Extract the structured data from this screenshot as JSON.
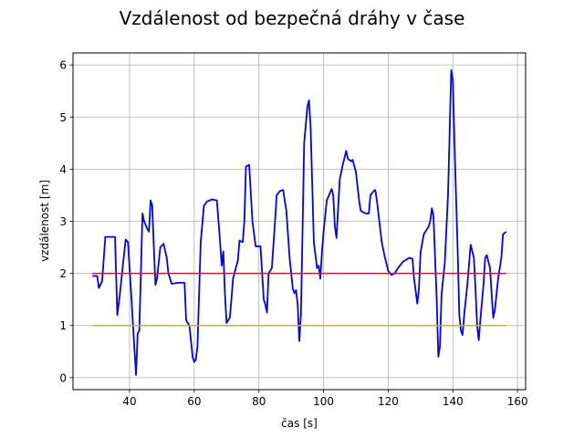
{
  "chart_data": {
    "type": "line",
    "title": "Vzdálenost od bezpečná dráhy v čase",
    "xlabel": "čas [s]",
    "ylabel": "vzdálenost [m]",
    "xlim": [
      22.5,
      162.5
    ],
    "ylim": [
      -0.23,
      6.23
    ],
    "xticks": [
      40,
      60,
      80,
      100,
      120,
      140,
      160
    ],
    "yticks": [
      0,
      1,
      2,
      3,
      4,
      5,
      6
    ],
    "grid": true,
    "series": [
      {
        "color": "#0000ff",
        "points": [
          [
            28.5,
            1.95
          ],
          [
            30.0,
            1.95
          ],
          [
            30.5,
            1.72
          ],
          [
            31.5,
            1.85
          ],
          [
            32.5,
            2.7
          ],
          [
            34.0,
            2.7
          ],
          [
            35.5,
            2.7
          ],
          [
            36.2,
            1.2
          ],
          [
            37.0,
            1.6
          ],
          [
            38.0,
            2.2
          ],
          [
            38.8,
            2.65
          ],
          [
            39.5,
            2.6
          ],
          [
            40.5,
            1.6
          ],
          [
            41.5,
            0.55
          ],
          [
            42.0,
            0.05
          ],
          [
            42.5,
            0.85
          ],
          [
            43.0,
            0.9
          ],
          [
            43.5,
            2.0
          ],
          [
            44.0,
            3.15
          ],
          [
            44.5,
            3.0
          ],
          [
            45.5,
            2.85
          ],
          [
            46.0,
            2.8
          ],
          [
            46.5,
            3.4
          ],
          [
            47.0,
            3.3
          ],
          [
            47.5,
            2.5
          ],
          [
            48.0,
            1.78
          ],
          [
            48.5,
            1.9
          ],
          [
            49.5,
            2.5
          ],
          [
            50.5,
            2.57
          ],
          [
            51.5,
            2.3
          ],
          [
            52.0,
            2.0
          ],
          [
            53.0,
            1.8
          ],
          [
            55.0,
            1.82
          ],
          [
            57.0,
            1.82
          ],
          [
            57.5,
            1.1
          ],
          [
            58.5,
            1.0
          ],
          [
            59.5,
            0.4
          ],
          [
            60.0,
            0.3
          ],
          [
            60.5,
            0.35
          ],
          [
            61.0,
            0.6
          ],
          [
            62.0,
            2.6
          ],
          [
            63.0,
            3.3
          ],
          [
            64.0,
            3.38
          ],
          [
            65.5,
            3.42
          ],
          [
            67.0,
            3.4
          ],
          [
            68.0,
            2.6
          ],
          [
            68.5,
            2.15
          ],
          [
            69.0,
            2.42
          ],
          [
            69.5,
            1.6
          ],
          [
            70.0,
            1.05
          ],
          [
            71.0,
            1.15
          ],
          [
            71.5,
            1.5
          ],
          [
            72.0,
            1.9
          ],
          [
            73.5,
            2.25
          ],
          [
            74.0,
            2.63
          ],
          [
            75.0,
            2.6
          ],
          [
            75.5,
            3.0
          ],
          [
            76.0,
            4.05
          ],
          [
            77.0,
            4.08
          ],
          [
            78.0,
            3.0
          ],
          [
            79.0,
            2.52
          ],
          [
            80.5,
            2.52
          ],
          [
            81.5,
            1.5
          ],
          [
            82.0,
            1.4
          ],
          [
            82.5,
            1.25
          ],
          [
            83.0,
            2.0
          ],
          [
            84.0,
            2.1
          ],
          [
            85.0,
            3.0
          ],
          [
            85.5,
            3.5
          ],
          [
            86.5,
            3.58
          ],
          [
            87.5,
            3.6
          ],
          [
            88.5,
            3.2
          ],
          [
            89.5,
            2.3
          ],
          [
            90.5,
            1.7
          ],
          [
            91.0,
            1.62
          ],
          [
            91.5,
            1.68
          ],
          [
            92.0,
            1.4
          ],
          [
            92.5,
            0.7
          ],
          [
            93.0,
            1.2
          ],
          [
            93.5,
            2.8
          ],
          [
            94.0,
            4.5
          ],
          [
            95.0,
            5.2
          ],
          [
            95.5,
            5.32
          ],
          [
            96.0,
            4.8
          ],
          [
            97.0,
            2.6
          ],
          [
            98.0,
            2.1
          ],
          [
            98.5,
            2.15
          ],
          [
            99.0,
            1.9
          ],
          [
            99.5,
            2.4
          ],
          [
            100.0,
            2.8
          ],
          [
            101.0,
            3.4
          ],
          [
            102.5,
            3.62
          ],
          [
            103.0,
            3.5
          ],
          [
            103.5,
            2.9
          ],
          [
            104.0,
            2.68
          ],
          [
            105.0,
            3.8
          ],
          [
            106.0,
            4.1
          ],
          [
            107.0,
            4.35
          ],
          [
            107.5,
            4.2
          ],
          [
            108.5,
            4.15
          ],
          [
            109.0,
            4.18
          ],
          [
            110.0,
            3.95
          ],
          [
            111.0,
            3.4
          ],
          [
            111.5,
            3.2
          ],
          [
            113.0,
            3.15
          ],
          [
            114.0,
            3.15
          ],
          [
            114.5,
            3.5
          ],
          [
            115.5,
            3.58
          ],
          [
            116.0,
            3.6
          ],
          [
            116.5,
            3.4
          ],
          [
            118.0,
            2.6
          ],
          [
            119.0,
            2.3
          ],
          [
            120.0,
            2.05
          ],
          [
            121.0,
            1.97
          ],
          [
            122.0,
            2.0
          ],
          [
            123.0,
            2.1
          ],
          [
            124.5,
            2.22
          ],
          [
            126.5,
            2.3
          ],
          [
            127.5,
            2.28
          ],
          [
            128.0,
            1.9
          ],
          [
            129.0,
            1.42
          ],
          [
            129.5,
            1.7
          ],
          [
            130.0,
            2.4
          ],
          [
            131.0,
            2.75
          ],
          [
            132.5,
            2.9
          ],
          [
            133.0,
            3.0
          ],
          [
            133.5,
            3.25
          ],
          [
            134.0,
            3.1
          ],
          [
            134.5,
            2.3
          ],
          [
            135.0,
            1.5
          ],
          [
            135.5,
            0.4
          ],
          [
            136.0,
            0.6
          ],
          [
            136.5,
            1.6
          ],
          [
            137.5,
            2.2
          ],
          [
            138.5,
            3.5
          ],
          [
            139.5,
            5.9
          ],
          [
            140.0,
            5.7
          ],
          [
            140.5,
            4.5
          ],
          [
            141.5,
            2.4
          ],
          [
            142.0,
            1.2
          ],
          [
            142.5,
            0.9
          ],
          [
            143.0,
            0.82
          ],
          [
            143.5,
            1.2
          ],
          [
            144.5,
            1.8
          ],
          [
            145.5,
            2.55
          ],
          [
            146.5,
            2.3
          ],
          [
            147.0,
            1.7
          ],
          [
            147.5,
            1.0
          ],
          [
            148.0,
            0.72
          ],
          [
            148.5,
            1.1
          ],
          [
            149.5,
            1.8
          ],
          [
            150.0,
            2.3
          ],
          [
            150.5,
            2.35
          ],
          [
            151.5,
            2.1
          ],
          [
            152.0,
            1.6
          ],
          [
            152.5,
            1.15
          ],
          [
            153.0,
            1.3
          ],
          [
            154.0,
            1.9
          ],
          [
            155.0,
            2.3
          ],
          [
            155.5,
            2.75
          ],
          [
            156.5,
            2.8
          ]
        ]
      },
      {
        "color": "#ff0000",
        "points": [
          [
            28.5,
            2.0
          ],
          [
            156.5,
            2.0
          ]
        ]
      },
      {
        "color": "#bfbf00",
        "points": [
          [
            28.5,
            1.0
          ],
          [
            156.5,
            1.0
          ]
        ]
      }
    ]
  }
}
